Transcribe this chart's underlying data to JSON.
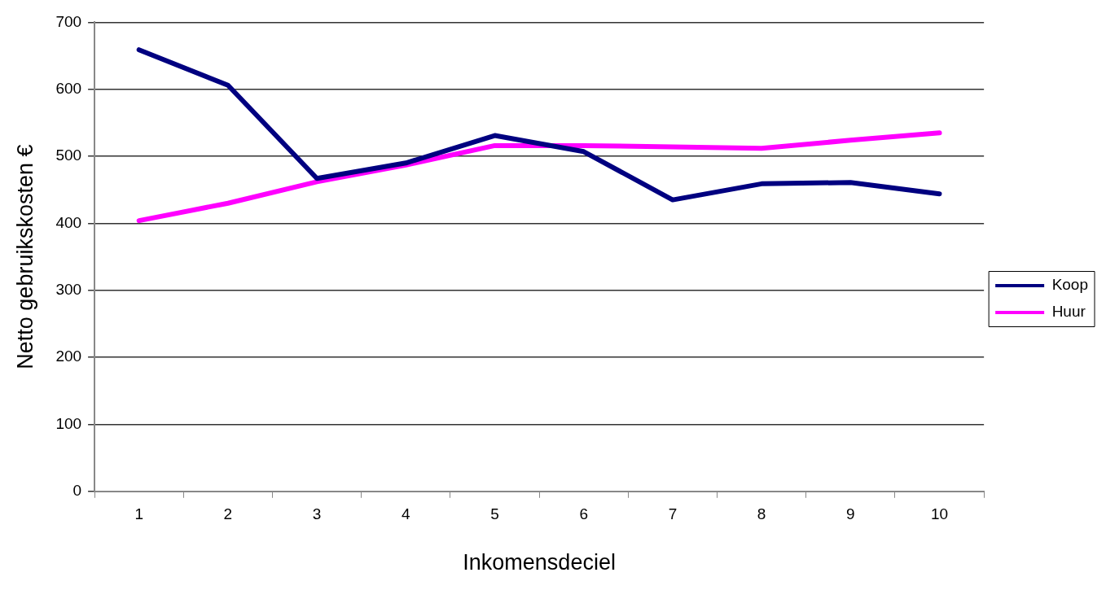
{
  "chart_data": {
    "type": "line",
    "xlabel": "Inkomensdeciel",
    "ylabel": "Netto gebruikskosten €",
    "categories": [
      "1",
      "2",
      "3",
      "4",
      "5",
      "6",
      "7",
      "8",
      "9",
      "10"
    ],
    "series": [
      {
        "name": "Koop",
        "color": "#000080",
        "values": [
          659,
          606,
          467,
          490,
          531,
          507,
          435,
          459,
          461,
          444
        ]
      },
      {
        "name": "Huur",
        "color": "#ff00ff",
        "values": [
          404,
          430,
          462,
          487,
          516,
          516,
          514,
          512,
          524,
          535
        ]
      }
    ],
    "ylim": [
      0,
      700
    ],
    "yticks": [
      0,
      100,
      200,
      300,
      400,
      500,
      600,
      700
    ],
    "grid": "y",
    "legend": "right",
    "marker": "none",
    "line_style": "solid"
  }
}
